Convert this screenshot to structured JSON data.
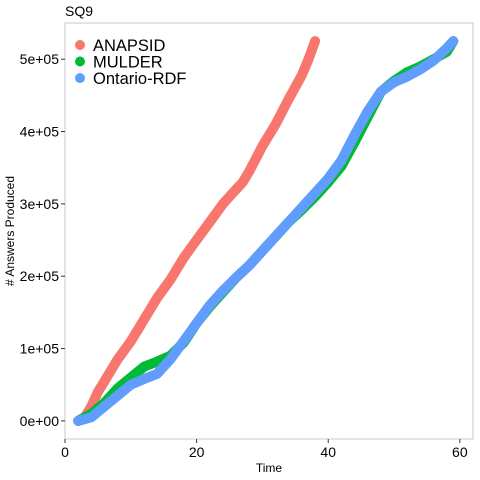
{
  "chart_data": {
    "type": "line",
    "title": "SQ9",
    "xlabel": "Time",
    "ylabel": "# Answers Produced",
    "xlim": [
      0,
      62
    ],
    "ylim": [
      -25000,
      550000
    ],
    "x_ticks": [
      0,
      20,
      40,
      60
    ],
    "x_tick_labels": [
      "0",
      "20",
      "40",
      "60"
    ],
    "y_ticks": [
      0,
      100000,
      200000,
      300000,
      400000,
      500000
    ],
    "y_tick_labels": [
      "0e+00",
      "1e+05",
      "2e+05",
      "3e+05",
      "4e+05",
      "5e+05"
    ],
    "grid": false,
    "legend_position": "top-left",
    "series": [
      {
        "name": "ANAPSID",
        "color": "#F8766D",
        "points": [
          [
            2,
            0
          ],
          [
            3,
            5000
          ],
          [
            4,
            20000
          ],
          [
            5,
            40000
          ],
          [
            6,
            55000
          ],
          [
            8,
            85000
          ],
          [
            10,
            110000
          ],
          [
            12,
            140000
          ],
          [
            14,
            170000
          ],
          [
            16,
            195000
          ],
          [
            18,
            225000
          ],
          [
            20,
            250000
          ],
          [
            22,
            275000
          ],
          [
            24,
            300000
          ],
          [
            26,
            320000
          ],
          [
            27,
            330000
          ],
          [
            28,
            345000
          ],
          [
            30,
            380000
          ],
          [
            32,
            410000
          ],
          [
            34,
            445000
          ],
          [
            36,
            478000
          ],
          [
            37,
            500000
          ],
          [
            38,
            525000
          ]
        ]
      },
      {
        "name": "MULDER",
        "color": "#00BA38",
        "points": [
          [
            2,
            0
          ],
          [
            4,
            10000
          ],
          [
            6,
            25000
          ],
          [
            8,
            45000
          ],
          [
            10,
            60000
          ],
          [
            12,
            75000
          ],
          [
            14,
            82000
          ],
          [
            16,
            90000
          ],
          [
            18,
            108000
          ],
          [
            20,
            135000
          ],
          [
            22,
            158000
          ],
          [
            24,
            178000
          ],
          [
            26,
            198000
          ],
          [
            28,
            215000
          ],
          [
            30,
            235000
          ],
          [
            32,
            255000
          ],
          [
            34,
            275000
          ],
          [
            36,
            292000
          ],
          [
            38,
            310000
          ],
          [
            40,
            330000
          ],
          [
            42,
            352000
          ],
          [
            44,
            385000
          ],
          [
            46,
            420000
          ],
          [
            48,
            455000
          ],
          [
            50,
            470000
          ],
          [
            52,
            482000
          ],
          [
            54,
            490000
          ],
          [
            56,
            500000
          ],
          [
            58,
            510000
          ],
          [
            59,
            525000
          ]
        ]
      },
      {
        "name": "Ontario-RDF",
        "color": "#619CFF",
        "points": [
          [
            2,
            0
          ],
          [
            4,
            5000
          ],
          [
            6,
            20000
          ],
          [
            8,
            35000
          ],
          [
            10,
            50000
          ],
          [
            12,
            58000
          ],
          [
            14,
            65000
          ],
          [
            16,
            85000
          ],
          [
            18,
            110000
          ],
          [
            20,
            135000
          ],
          [
            22,
            160000
          ],
          [
            24,
            180000
          ],
          [
            26,
            198000
          ],
          [
            28,
            215000
          ],
          [
            30,
            235000
          ],
          [
            32,
            255000
          ],
          [
            34,
            275000
          ],
          [
            36,
            295000
          ],
          [
            38,
            315000
          ],
          [
            40,
            335000
          ],
          [
            42,
            360000
          ],
          [
            44,
            395000
          ],
          [
            46,
            428000
          ],
          [
            48,
            455000
          ],
          [
            50,
            468000
          ],
          [
            52,
            476000
          ],
          [
            54,
            486000
          ],
          [
            56,
            498000
          ],
          [
            58,
            515000
          ],
          [
            59,
            525000
          ]
        ]
      }
    ]
  }
}
